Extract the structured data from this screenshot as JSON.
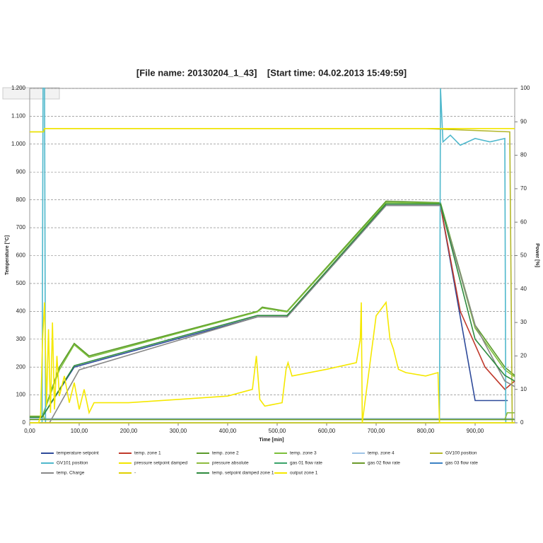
{
  "chart_data": {
    "type": "line",
    "title": "[File name: 20130204_1_43]    [Start time: 04.02.2013 15:49:59]",
    "x_label": "Time [min]",
    "y_label": "Temperature [°C]",
    "y2_label": "Power [%]",
    "xlim": [
      0,
      980
    ],
    "xticks": [
      {
        "value": 0,
        "label": "0,00"
      },
      {
        "value": 100,
        "label": "100,00"
      },
      {
        "value": 200,
        "label": "200,00"
      },
      {
        "value": 300,
        "label": "300,00"
      },
      {
        "value": 400,
        "label": "400,00"
      },
      {
        "value": 500,
        "label": "500,00"
      },
      {
        "value": 600,
        "label": "600,00"
      },
      {
        "value": 700,
        "label": "700,00"
      },
      {
        "value": 800,
        "label": "800,00"
      },
      {
        "value": 900,
        "label": "900,00"
      }
    ],
    "ylim": [
      0,
      1200
    ],
    "yticks": [
      0,
      100,
      200,
      300,
      400,
      500,
      600,
      700,
      800,
      900,
      {
        "value": 1000,
        "label": "1.000"
      },
      {
        "value": 1100,
        "label": "1.100"
      },
      {
        "value": 1200,
        "label": "1.200"
      }
    ],
    "y2lim": [
      0,
      100
    ],
    "y2ticks": [
      0,
      10,
      20,
      30,
      40,
      50,
      60,
      70,
      80,
      90,
      100
    ],
    "grid": true,
    "legend": "bottom",
    "series": [
      {
        "name": "temperature setpoint",
        "color": "#2e4a9a",
        "x": [
          0,
          25,
          90,
          460,
          520,
          720,
          830,
          900,
          966
        ],
        "values": [
          20,
          20,
          200,
          380,
          380,
          780,
          780,
          80,
          80
        ]
      },
      {
        "name": "temp. zone 1",
        "color": "#c0392b",
        "x": [
          830,
          870,
          920,
          960,
          980
        ],
        "values": [
          780,
          400,
          200,
          120,
          150
        ]
      },
      {
        "name": "temp. zone 2",
        "color": "#5a9a2a",
        "x": [
          0,
          25,
          60,
          90,
          120,
          460,
          470,
          520,
          720,
          830,
          900,
          960,
          980
        ],
        "values": [
          20,
          20,
          200,
          285,
          240,
          400,
          415,
          400,
          795,
          790,
          350,
          200,
          170
        ]
      },
      {
        "name": "temp. zone 3",
        "color": "#7cbf3a",
        "x": [
          0,
          25,
          60,
          90,
          120,
          460,
          470,
          520,
          720,
          830,
          900,
          960,
          980
        ],
        "values": [
          20,
          20,
          190,
          280,
          235,
          398,
          412,
          398,
          790,
          788,
          340,
          190,
          165
        ]
      },
      {
        "name": "temp. zone 4",
        "color": "#9dc3e6",
        "x": [
          0,
          980
        ],
        "values": [
          15,
          15
        ]
      },
      {
        "name": "GV100 position",
        "color": "#b5b82a",
        "axis": "y2",
        "x": [
          0,
          28,
          30,
          800,
          970,
          975,
          980
        ],
        "values": [
          87,
          87,
          88,
          88,
          87,
          0,
          0
        ]
      },
      {
        "name": "GV101 position",
        "color": "#4fb8cc",
        "axis": "y2",
        "x": [
          0,
          25,
          27,
          30,
          32,
          828,
          830,
          835,
          850,
          870,
          900,
          930,
          960,
          962,
          980
        ],
        "values": [
          0,
          0,
          100,
          100,
          0,
          0,
          100,
          84,
          86,
          83,
          85,
          84,
          85,
          0,
          0
        ]
      },
      {
        "name": "pressure setpoint damped",
        "color": "#f2e600",
        "axis": "y2",
        "x": [
          0,
          28,
          30,
          980
        ],
        "values": [
          87,
          87,
          88,
          88
        ]
      },
      {
        "name": "pressure absolute",
        "color": "#8fbc3f",
        "axis": "y2",
        "x": [
          0,
          28,
          30,
          960,
          965,
          980
        ],
        "values": [
          2,
          2,
          1,
          1,
          3,
          3
        ]
      },
      {
        "name": "gas 01 flow rate",
        "color": "#3aa36a",
        "axis": "y2",
        "x": [
          0,
          980
        ],
        "values": [
          1,
          1
        ]
      },
      {
        "name": "gas 02 flow rate",
        "color": "#6b9a2a",
        "axis": "y2",
        "x": [
          0,
          980
        ],
        "values": [
          1,
          1
        ]
      },
      {
        "name": "gas 03 flow rate",
        "color": "#3b82c4",
        "axis": "y2",
        "x": [
          0,
          980
        ],
        "values": [
          0,
          0
        ]
      },
      {
        "name": "temp. Charge",
        "color": "#888888",
        "x": [
          0,
          40,
          100,
          460,
          520,
          720,
          830,
          900,
          960,
          980
        ],
        "values": [
          0,
          0,
          190,
          380,
          380,
          780,
          780,
          350,
          150,
          130
        ]
      },
      {
        "name": "-",
        "color": "#e0d000",
        "axis": "y2",
        "x": [
          0,
          980
        ],
        "values": [
          0,
          0
        ]
      },
      {
        "name": "temp. setpoint damped zone 1",
        "color": "#2e8b3e",
        "x": [
          0,
          25,
          90,
          460,
          520,
          720,
          830,
          900,
          960,
          980
        ],
        "values": [
          20,
          20,
          205,
          385,
          385,
          785,
          785,
          300,
          170,
          150
        ]
      },
      {
        "name": "output zone 1",
        "color": "#f5e800",
        "axis": "y2",
        "x": [
          0,
          18,
          22,
          26,
          30,
          34,
          38,
          42,
          46,
          50,
          55,
          60,
          70,
          80,
          90,
          100,
          110,
          120,
          130,
          200,
          300,
          400,
          450,
          458,
          465,
          475,
          510,
          518,
          522,
          530,
          600,
          660,
          668,
          670,
          672,
          700,
          715,
          720,
          728,
          735,
          745,
          760,
          800,
          825,
          828,
          980
        ],
        "values": [
          0,
          0,
          2,
          25,
          36,
          5,
          28,
          3,
          30,
          4,
          20,
          8,
          14,
          6,
          12,
          4,
          10,
          3,
          6,
          6,
          7,
          8,
          10,
          20,
          7,
          5,
          6,
          16,
          18,
          14,
          16,
          18,
          25,
          36,
          0,
          32,
          35,
          36,
          25,
          22,
          16,
          15,
          14,
          15,
          0,
          0
        ]
      }
    ]
  }
}
